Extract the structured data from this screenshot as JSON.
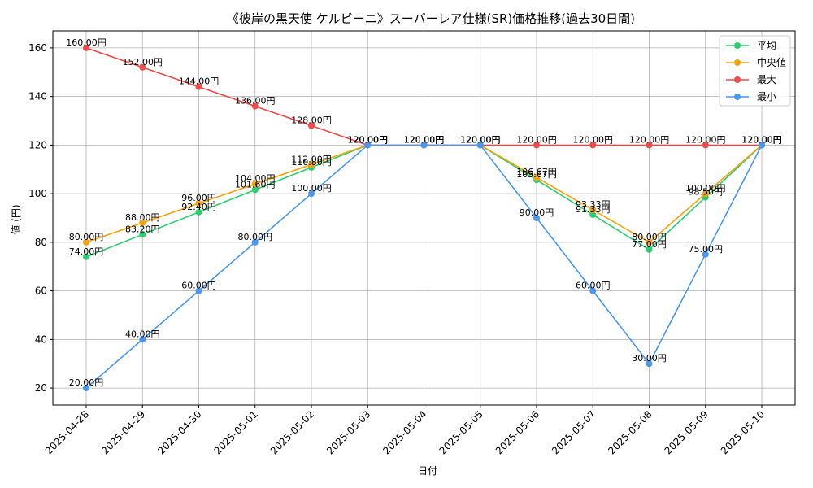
{
  "chart_data": {
    "type": "line",
    "title": "《彼岸の黒天使 ケルビーニ》スーパーレア仕様(SR)価格推移(過去30日間)",
    "xlabel": "日付",
    "ylabel": "値 (円)",
    "categories": [
      "2025-04-28",
      "2025-04-29",
      "2025-04-30",
      "2025-05-01",
      "2025-05-02",
      "2025-05-03",
      "2025-05-04",
      "2025-05-05",
      "2025-05-06",
      "2025-05-07",
      "2025-05-08",
      "2025-05-09",
      "2025-05-10"
    ],
    "yticks": [
      20,
      40,
      60,
      80,
      100,
      120,
      140,
      160
    ],
    "ylim": [
      13,
      167
    ],
    "grid": true,
    "legend_position": "top-right",
    "value_suffix": "円",
    "series": [
      {
        "name": "平均",
        "color": "#2ecc71",
        "values": [
          74.0,
          83.2,
          92.4,
          101.6,
          110.8,
          120.0,
          120.0,
          120.0,
          105.67,
          91.33,
          77.0,
          98.5,
          120.0
        ]
      },
      {
        "name": "中央値",
        "color": "#f5a30a",
        "values": [
          80.0,
          88.0,
          96.0,
          104.0,
          112.0,
          120.0,
          120.0,
          120.0,
          106.67,
          93.33,
          80.0,
          100.0,
          120.0
        ]
      },
      {
        "name": "最大",
        "color": "#ef4b4b",
        "values": [
          160.0,
          152.0,
          144.0,
          136.0,
          128.0,
          120.0,
          120.0,
          120.0,
          120.0,
          120.0,
          120.0,
          120.0,
          120.0
        ]
      },
      {
        "name": "最小",
        "color": "#4a97f2",
        "values": [
          20.0,
          40.0,
          60.0,
          80.0,
          100.0,
          120.0,
          120.0,
          120.0,
          90.0,
          60.0,
          30.0,
          75.0,
          120.0
        ]
      }
    ]
  }
}
